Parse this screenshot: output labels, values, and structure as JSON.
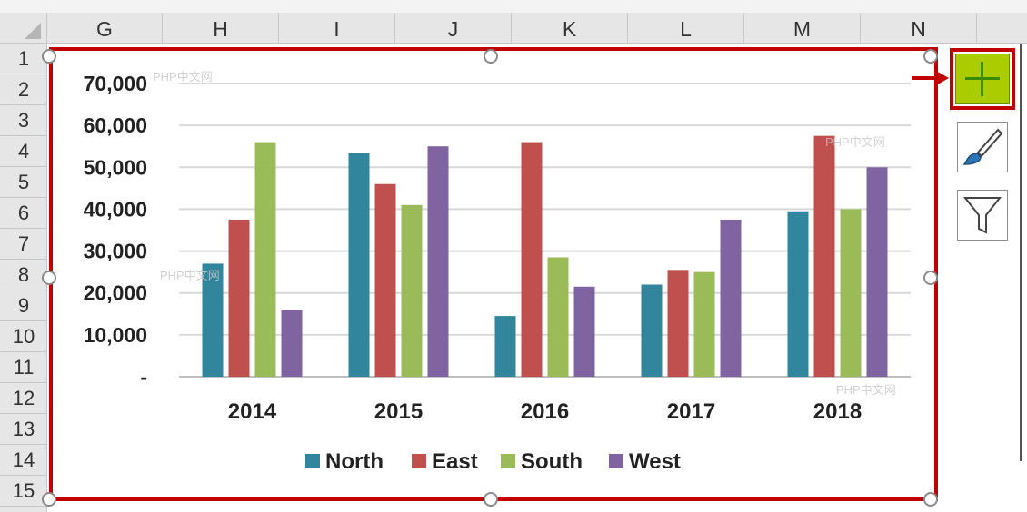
{
  "columns": [
    "G",
    "H",
    "I",
    "J",
    "K",
    "L",
    "M",
    "N"
  ],
  "rows": [
    "1",
    "2",
    "3",
    "4",
    "5",
    "6",
    "7",
    "8",
    "9",
    "10",
    "11",
    "12",
    "13",
    "14",
    "15"
  ],
  "watermarks": [
    "PHP中文网",
    "PHP中文网",
    "PHP中文网",
    "PHP中文网"
  ],
  "chart_data": {
    "type": "bar",
    "categories": [
      "2014",
      "2015",
      "2016",
      "2017",
      "2018"
    ],
    "series": [
      {
        "name": "North",
        "values": [
          27000,
          53500,
          14500,
          22000,
          39500
        ]
      },
      {
        "name": "East",
        "values": [
          37500,
          46000,
          56000,
          25500,
          57500
        ]
      },
      {
        "name": "South",
        "values": [
          56000,
          41000,
          28500,
          25000,
          40000
        ]
      },
      {
        "name": "West",
        "values": [
          16000,
          55000,
          21500,
          37500,
          50000
        ]
      }
    ],
    "ylim": [
      0,
      70000
    ],
    "yticks": [
      {
        "value": 0,
        "label": "-"
      },
      {
        "value": 10000,
        "label": "10,000"
      },
      {
        "value": 20000,
        "label": "20,000"
      },
      {
        "value": 30000,
        "label": "30,000"
      },
      {
        "value": 40000,
        "label": "40,000"
      },
      {
        "value": 50000,
        "label": "50,000"
      },
      {
        "value": 60000,
        "label": "60,000"
      },
      {
        "value": 70000,
        "label": "70,000"
      }
    ],
    "grid": true,
    "legend": "bottom",
    "colors": {
      "North": "#31859c",
      "East": "#c0504d",
      "South": "#9bbb59",
      "West": "#8064a2"
    }
  }
}
